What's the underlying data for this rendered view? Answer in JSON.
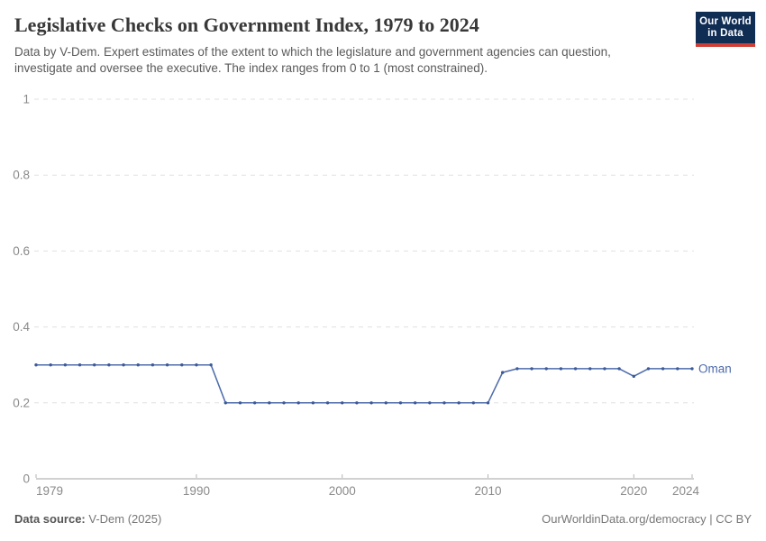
{
  "header": {
    "title": "Legislative Checks on Government Index, 1979 to 2024",
    "subtitle": "Data by V-Dem. Expert estimates of the extent to which the legislature and government agencies can question, investigate and oversee the executive. The index ranges from 0 to 1 (most constrained).",
    "logo": {
      "line1": "Our World",
      "line2": "in Data",
      "bg_color": "#102d54",
      "accent_color": "#cf3e36"
    }
  },
  "footer": {
    "source_label": "Data source:",
    "source_value": "V-Dem (2025)",
    "right_text": "OurWorldinData.org/democracy | CC BY"
  },
  "chart_data": {
    "type": "line",
    "title": "Legislative Checks on Government Index, 1979 to 2024",
    "xlabel": "",
    "ylabel": "",
    "xlim": [
      1979,
      2024
    ],
    "ylim": [
      0,
      1
    ],
    "grid": "horizontal-dashed",
    "legend_position": "end-of-line-label",
    "x_ticks": [
      1979,
      1990,
      2000,
      2010,
      2020,
      2024
    ],
    "y_ticks": [
      0,
      0.2,
      0.4,
      0.6,
      0.8,
      1
    ],
    "y_tick_labels": [
      "0",
      "0.2",
      "0.4",
      "0.6",
      "0.8",
      "1"
    ],
    "series": [
      {
        "name": "Oman",
        "color": "#4d6bab",
        "marker_color": "#3b5a9a",
        "years": [
          1979,
          1980,
          1981,
          1982,
          1983,
          1984,
          1985,
          1986,
          1987,
          1988,
          1989,
          1990,
          1991,
          1992,
          1993,
          1994,
          1995,
          1996,
          1997,
          1998,
          1999,
          2000,
          2001,
          2002,
          2003,
          2004,
          2005,
          2006,
          2007,
          2008,
          2009,
          2010,
          2011,
          2012,
          2013,
          2014,
          2015,
          2016,
          2017,
          2018,
          2019,
          2020,
          2021,
          2022,
          2023,
          2024
        ],
        "values": [
          0.3,
          0.3,
          0.3,
          0.3,
          0.3,
          0.3,
          0.3,
          0.3,
          0.3,
          0.3,
          0.3,
          0.3,
          0.3,
          0.2,
          0.2,
          0.2,
          0.2,
          0.2,
          0.2,
          0.2,
          0.2,
          0.2,
          0.2,
          0.2,
          0.2,
          0.2,
          0.2,
          0.2,
          0.2,
          0.2,
          0.2,
          0.2,
          0.28,
          0.29,
          0.29,
          0.29,
          0.29,
          0.29,
          0.29,
          0.29,
          0.29,
          0.27,
          0.29,
          0.29,
          0.29,
          0.29
        ]
      }
    ]
  }
}
